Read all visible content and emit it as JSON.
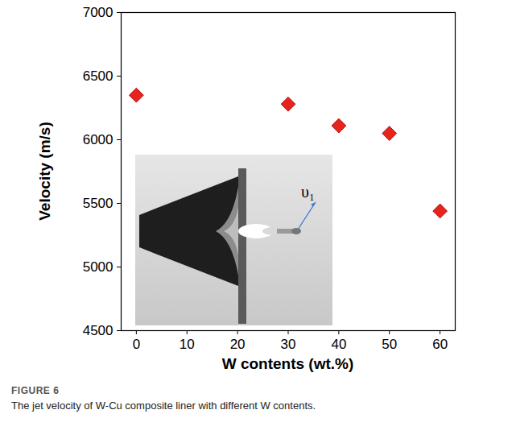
{
  "chart_data": {
    "type": "scatter",
    "x_label": "W contents (wt.%)",
    "y_label": "Velocity (m/s)",
    "figure_label": "FIGURE 6",
    "caption": "The jet velocity of W-Cu composite liner with different W contents.",
    "x": [
      0,
      30,
      40,
      50,
      60
    ],
    "values": [
      6350,
      6280,
      6110,
      6050,
      5440
    ],
    "color": "#e8231d",
    "marker": "diamond",
    "xlim": [
      -3,
      63
    ],
    "xticks": [
      0,
      10,
      20,
      30,
      40,
      50,
      60
    ],
    "ylim": [
      4500,
      7000
    ],
    "yticks": [
      4500,
      5000,
      5500,
      6000,
      6500,
      7000
    ],
    "grid": false,
    "annotations": [
      {
        "text": "υ₁"
      }
    ]
  }
}
